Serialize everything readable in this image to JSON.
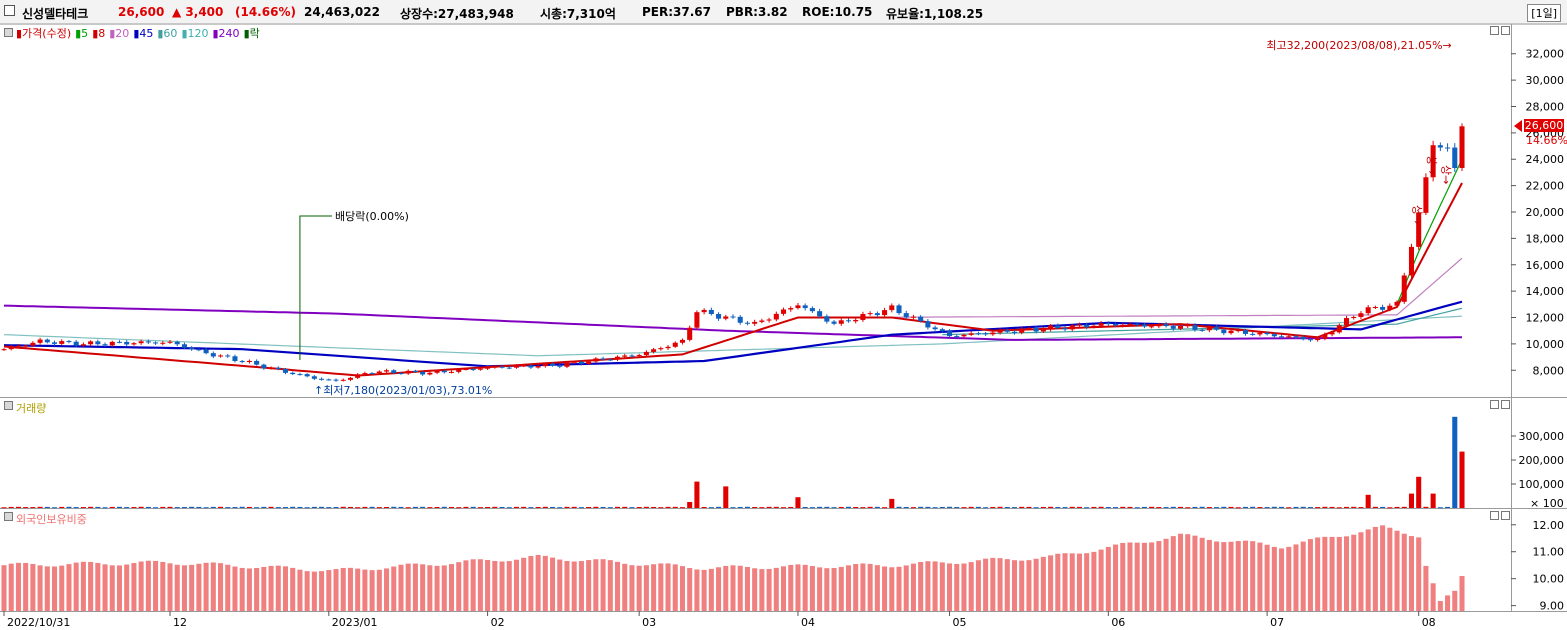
{
  "header": {
    "stock_name": "신성델타테크",
    "price": "26,600",
    "change": "▲ 3,400",
    "change_pct": "(14.66%)",
    "volume": "24,463,022",
    "listed_shares": "상장수:27,483,948",
    "market_cap": "시총:7,310억",
    "per": "PER:37.67",
    "pbr": "PBR:3.82",
    "roe": "ROE:10.75",
    "reserve_ratio": "유보율:1,108.25",
    "period": "[1일]"
  },
  "price_panel": {
    "legend": [
      {
        "text": "가격(수정)",
        "color": "#d00000"
      },
      {
        "text": "5",
        "color": "#00a000"
      },
      {
        "text": "8",
        "color": "#d00000"
      },
      {
        "text": "20",
        "color": "#c060c0"
      },
      {
        "text": "45",
        "color": "#0000c0"
      },
      {
        "text": "60",
        "color": "#40a0a0"
      },
      {
        "text": "120",
        "color": "#40b0b0"
      },
      {
        "text": "240",
        "color": "#8000c0"
      },
      {
        "text": "락",
        "color": "#006000"
      }
    ],
    "annot_high": "최고32,200(2023/08/08),21.05%",
    "annot_low": "최저7,180(2023/01/03),73.01%",
    "annot_dividend": "배당락(0.00%)",
    "upper_limit_mark": "상",
    "last_price_box": "26,600",
    "last_pct": "14.66%"
  },
  "volume_panel": {
    "label": "거래량",
    "unit": "× 100"
  },
  "foreign_panel": {
    "label": "외국인보유비중"
  },
  "colors": {
    "up": "#e00000",
    "down": "#1060c0",
    "ma5": "#00a000",
    "ma8": "#d00000",
    "ma20": "#c080c0",
    "ma45": "#0000c0",
    "ma60": "#40a0a0",
    "ma120": "#80c0c0",
    "ma240": "#8000c0",
    "foreign_bar": "#f08080"
  },
  "chart_data": [
    {
      "type": "candlestick",
      "title": "",
      "y_ticks": [
        8000,
        10000,
        12000,
        14000,
        16000,
        18000,
        20000,
        22000,
        24000,
        26000,
        28000,
        30000,
        32000
      ],
      "y_tick_labels": [
        "8,000",
        "10,000",
        "12,000",
        "14,000",
        "16,000",
        "18,000",
        "20,000",
        "22,000",
        "24,000",
        "26,000",
        "28,000",
        "30,000",
        "32,000"
      ],
      "ylim": [
        6200,
        33800
      ],
      "x_labels": [
        "2022/10/31",
        "12",
        "2023/01",
        "02",
        "03",
        "04",
        "05",
        "06",
        "07",
        "08"
      ],
      "x_label_dates": [
        "2022-10-31",
        "2022-12-01",
        "2023-01-02",
        "2023-02-01",
        "2023-03-02",
        "2023-04-03",
        "2023-05-02",
        "2023-06-01",
        "2023-07-03",
        "2023-08-01"
      ],
      "start_date": "2022-10-31",
      "end_date": "2023-08-09",
      "ohlc_approx": [
        {
          "date": "2022-10-31",
          "close": 9600
        },
        {
          "date": "2022-11-07",
          "close": 10200
        },
        {
          "date": "2022-11-15",
          "close": 10000
        },
        {
          "date": "2022-11-25",
          "close": 10100
        },
        {
          "date": "2022-12-01",
          "close": 10100
        },
        {
          "date": "2022-12-08",
          "close": 9300
        },
        {
          "date": "2022-12-15",
          "close": 8700
        },
        {
          "date": "2022-12-22",
          "close": 8000
        },
        {
          "date": "2022-12-29",
          "close": 7400
        },
        {
          "date": "2023-01-03",
          "close": 7180
        },
        {
          "date": "2023-01-10",
          "close": 7900
        },
        {
          "date": "2023-01-20",
          "close": 7800
        },
        {
          "date": "2023-02-01",
          "close": 8200
        },
        {
          "date": "2023-02-15",
          "close": 8400
        },
        {
          "date": "2023-03-02",
          "close": 9200
        },
        {
          "date": "2023-03-10",
          "close": 10200
        },
        {
          "date": "2023-03-14",
          "close": 12500
        },
        {
          "date": "2023-03-24",
          "close": 11500
        },
        {
          "date": "2023-04-03",
          "close": 13000
        },
        {
          "date": "2023-04-10",
          "close": 11500
        },
        {
          "date": "2023-04-20",
          "close": 12700
        },
        {
          "date": "2023-05-02",
          "close": 10600
        },
        {
          "date": "2023-05-15",
          "close": 11000
        },
        {
          "date": "2023-06-01",
          "close": 11500
        },
        {
          "date": "2023-06-15",
          "close": 11300
        },
        {
          "date": "2023-07-03",
          "close": 10700
        },
        {
          "date": "2023-07-12",
          "close": 10300
        },
        {
          "date": "2023-07-20",
          "close": 12500
        },
        {
          "date": "2023-07-27",
          "close": 13000
        },
        {
          "date": "2023-08-01",
          "close": 19800
        },
        {
          "date": "2023-08-03",
          "close": 25200
        },
        {
          "date": "2023-08-07",
          "close": 24800
        },
        {
          "date": "2023-08-08",
          "close": 23200
        },
        {
          "date": "2023-08-09",
          "close": 26600
        }
      ],
      "ma_approx": {
        "ma240": [
          {
            "date": "2022-10-31",
            "v": 12900
          },
          {
            "date": "2023-01-03",
            "v": 12300
          },
          {
            "date": "2023-03-20",
            "v": 11000
          },
          {
            "date": "2023-05-15",
            "v": 10300
          },
          {
            "date": "2023-08-09",
            "v": 10500
          }
        ],
        "ma45": [
          {
            "date": "2022-10-31",
            "v": 9900
          },
          {
            "date": "2022-12-15",
            "v": 9600
          },
          {
            "date": "2023-02-01",
            "v": 8300
          },
          {
            "date": "2023-03-15",
            "v": 8700
          },
          {
            "date": "2023-04-20",
            "v": 10700
          },
          {
            "date": "2023-06-01",
            "v": 11600
          },
          {
            "date": "2023-07-20",
            "v": 11100
          },
          {
            "date": "2023-08-09",
            "v": 13200
          }
        ],
        "ma5": [
          {
            "date": "2023-07-27",
            "v": 13000
          },
          {
            "date": "2023-08-01",
            "v": 17000
          },
          {
            "date": "2023-08-09",
            "v": 24000
          }
        ],
        "ma8": [
          {
            "date": "2022-10-31",
            "v": 9800
          },
          {
            "date": "2022-12-20",
            "v": 8200
          },
          {
            "date": "2023-01-06",
            "v": 7600
          },
          {
            "date": "2023-03-10",
            "v": 9200
          },
          {
            "date": "2023-04-03",
            "v": 12000
          },
          {
            "date": "2023-04-20",
            "v": 12000
          },
          {
            "date": "2023-05-10",
            "v": 11000
          },
          {
            "date": "2023-06-15",
            "v": 11500
          },
          {
            "date": "2023-07-12",
            "v": 10500
          },
          {
            "date": "2023-07-27",
            "v": 12800
          },
          {
            "date": "2023-08-09",
            "v": 22200
          }
        ],
        "ma20": [
          {
            "date": "2023-04-10",
            "v": 12000
          },
          {
            "date": "2023-07-27",
            "v": 12200
          },
          {
            "date": "2023-08-09",
            "v": 16500
          }
        ],
        "ma60": [
          {
            "date": "2023-05-01",
            "v": 10700
          },
          {
            "date": "2023-07-27",
            "v": 11500
          },
          {
            "date": "2023-08-09",
            "v": 12700
          }
        ],
        "ma120": [
          {
            "date": "2022-10-31",
            "v": 10700
          },
          {
            "date": "2023-02-10",
            "v": 9100
          },
          {
            "date": "2023-05-01",
            "v": 10000
          },
          {
            "date": "2023-08-09",
            "v": 12100
          }
        ]
      }
    },
    {
      "type": "bar",
      "title": "",
      "y_ticks": [
        100000,
        200000,
        300000
      ],
      "y_tick_labels": [
        "100,000",
        "200,000",
        "300,000"
      ],
      "ylim": [
        0,
        400000
      ],
      "unit": "× 100",
      "values_approx": [
        {
          "date": "2023-03-13",
          "v": 25000
        },
        {
          "date": "2023-03-14",
          "v": 110000
        },
        {
          "date": "2023-03-20",
          "v": 90000
        },
        {
          "date": "2023-04-03",
          "v": 45000
        },
        {
          "date": "2023-04-20",
          "v": 38000
        },
        {
          "date": "2023-07-21",
          "v": 55000
        },
        {
          "date": "2023-07-31",
          "v": 60000
        },
        {
          "date": "2023-08-01",
          "v": 130000
        },
        {
          "date": "2023-08-03",
          "v": 60000
        },
        {
          "date": "2023-08-08",
          "v": 380000
        },
        {
          "date": "2023-08-09",
          "v": 235000
        }
      ]
    },
    {
      "type": "bar",
      "title": "",
      "y_ticks": [
        9.0,
        10.0,
        11.0,
        12.0
      ],
      "y_tick_labels": [
        "9.00",
        "10.00",
        "11.00",
        "12.00"
      ],
      "ylim": [
        8.8,
        12.4
      ],
      "values_approx": [
        {
          "date": "2022-10-31",
          "v": 10.5
        },
        {
          "date": "2022-12-01",
          "v": 10.6
        },
        {
          "date": "2023-01-03",
          "v": 10.3
        },
        {
          "date": "2023-02-10",
          "v": 10.8
        },
        {
          "date": "2023-03-15",
          "v": 10.4
        },
        {
          "date": "2023-04-20",
          "v": 10.5
        },
        {
          "date": "2023-05-20",
          "v": 10.8
        },
        {
          "date": "2023-06-15",
          "v": 11.6
        },
        {
          "date": "2023-07-05",
          "v": 11.2
        },
        {
          "date": "2023-07-25",
          "v": 11.9
        },
        {
          "date": "2023-08-01",
          "v": 11.6
        },
        {
          "date": "2023-08-02",
          "v": 10.5
        },
        {
          "date": "2023-08-04",
          "v": 9.1
        },
        {
          "date": "2023-08-08",
          "v": 9.5
        },
        {
          "date": "2023-08-09",
          "v": 10.1
        }
      ]
    }
  ]
}
